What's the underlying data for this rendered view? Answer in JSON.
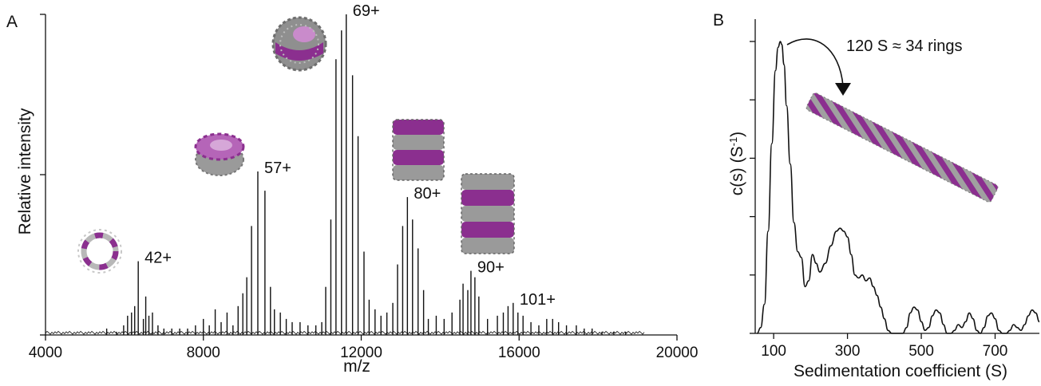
{
  "chart_data": [
    {
      "panel": "A",
      "type": "line",
      "title": "",
      "xlabel": "m/z",
      "ylabel": "Relative intensity",
      "xlim": [
        4000,
        20000
      ],
      "ylim": [
        0,
        1
      ],
      "x_ticks": [
        4000,
        8000,
        12000,
        16000,
        20000
      ],
      "y_ticks_unlabeled": [
        0,
        0.5,
        1
      ],
      "grid": false,
      "series": [
        {
          "peaks": [
            {
              "x": 5550,
              "y": 0.02
            },
            {
              "x": 5800,
              "y": 0.01
            },
            {
              "x": 5980,
              "y": 0.03
            },
            {
              "x": 6080,
              "y": 0.06
            },
            {
              "x": 6180,
              "y": 0.07
            },
            {
              "x": 6260,
              "y": 0.09
            },
            {
              "x": 6350,
              "y": 0.23
            },
            {
              "x": 6480,
              "y": 0.05
            },
            {
              "x": 6540,
              "y": 0.12
            },
            {
              "x": 6620,
              "y": 0.06
            },
            {
              "x": 6710,
              "y": 0.07
            },
            {
              "x": 6850,
              "y": 0.03
            },
            {
              "x": 7000,
              "y": 0.02
            },
            {
              "x": 7200,
              "y": 0.02
            },
            {
              "x": 7400,
              "y": 0.02
            },
            {
              "x": 7600,
              "y": 0.02
            },
            {
              "x": 7800,
              "y": 0.03
            },
            {
              "x": 8000,
              "y": 0.05
            },
            {
              "x": 8150,
              "y": 0.03
            },
            {
              "x": 8300,
              "y": 0.08
            },
            {
              "x": 8450,
              "y": 0.04
            },
            {
              "x": 8600,
              "y": 0.07
            },
            {
              "x": 8750,
              "y": 0.03
            },
            {
              "x": 8880,
              "y": 0.09
            },
            {
              "x": 9000,
              "y": 0.13
            },
            {
              "x": 9100,
              "y": 0.18
            },
            {
              "x": 9220,
              "y": 0.34
            },
            {
              "x": 9380,
              "y": 0.51
            },
            {
              "x": 9560,
              "y": 0.45
            },
            {
              "x": 9700,
              "y": 0.15
            },
            {
              "x": 9800,
              "y": 0.08
            },
            {
              "x": 9950,
              "y": 0.07
            },
            {
              "x": 10100,
              "y": 0.05
            },
            {
              "x": 10250,
              "y": 0.04
            },
            {
              "x": 10450,
              "y": 0.04
            },
            {
              "x": 10650,
              "y": 0.03
            },
            {
              "x": 10850,
              "y": 0.03
            },
            {
              "x": 11000,
              "y": 0.04
            },
            {
              "x": 11100,
              "y": 0.15
            },
            {
              "x": 11230,
              "y": 0.36
            },
            {
              "x": 11360,
              "y": 0.86
            },
            {
              "x": 11500,
              "y": 0.95
            },
            {
              "x": 11620,
              "y": 1.0
            },
            {
              "x": 11780,
              "y": 0.81
            },
            {
              "x": 11920,
              "y": 0.62
            },
            {
              "x": 12070,
              "y": 0.26
            },
            {
              "x": 12200,
              "y": 0.11
            },
            {
              "x": 12350,
              "y": 0.08
            },
            {
              "x": 12500,
              "y": 0.06
            },
            {
              "x": 12650,
              "y": 0.07
            },
            {
              "x": 12800,
              "y": 0.1
            },
            {
              "x": 12920,
              "y": 0.22
            },
            {
              "x": 13050,
              "y": 0.34
            },
            {
              "x": 13170,
              "y": 0.43
            },
            {
              "x": 13300,
              "y": 0.36
            },
            {
              "x": 13440,
              "y": 0.27
            },
            {
              "x": 13580,
              "y": 0.14
            },
            {
              "x": 13700,
              "y": 0.05
            },
            {
              "x": 13900,
              "y": 0.06
            },
            {
              "x": 14100,
              "y": 0.05
            },
            {
              "x": 14300,
              "y": 0.07
            },
            {
              "x": 14500,
              "y": 0.11
            },
            {
              "x": 14580,
              "y": 0.16
            },
            {
              "x": 14700,
              "y": 0.14
            },
            {
              "x": 14780,
              "y": 0.2
            },
            {
              "x": 14880,
              "y": 0.18
            },
            {
              "x": 14980,
              "y": 0.12
            },
            {
              "x": 15200,
              "y": 0.05
            },
            {
              "x": 15450,
              "y": 0.06
            },
            {
              "x": 15600,
              "y": 0.07
            },
            {
              "x": 15720,
              "y": 0.09
            },
            {
              "x": 15850,
              "y": 0.1
            },
            {
              "x": 15970,
              "y": 0.07
            },
            {
              "x": 16100,
              "y": 0.06
            },
            {
              "x": 16300,
              "y": 0.04
            },
            {
              "x": 16500,
              "y": 0.03
            },
            {
              "x": 16700,
              "y": 0.05
            },
            {
              "x": 16850,
              "y": 0.05
            },
            {
              "x": 17000,
              "y": 0.04
            },
            {
              "x": 17200,
              "y": 0.03
            },
            {
              "x": 17450,
              "y": 0.03
            },
            {
              "x": 17650,
              "y": 0.02
            },
            {
              "x": 17850,
              "y": 0.02
            },
            {
              "x": 18100,
              "y": 0.01
            },
            {
              "x": 18400,
              "y": 0.01
            },
            {
              "x": 18700,
              "y": 0.01
            }
          ]
        }
      ],
      "annotations": [
        {
          "text": "42+",
          "x": 6350,
          "y": 0.23
        },
        {
          "text": "57+",
          "x": 9380,
          "y": 0.51
        },
        {
          "text": "69+",
          "x": 11620,
          "y": 1.0
        },
        {
          "text": "80+",
          "x": 13170,
          "y": 0.43
        },
        {
          "text": "90+",
          "x": 14780,
          "y": 0.2
        },
        {
          "text": "101+",
          "x": 15850,
          "y": 0.1
        }
      ]
    },
    {
      "panel": "B",
      "type": "line",
      "title": "",
      "xlabel": "Sedimentation coefficient (S)",
      "ylabel": "c(s) (S",
      "ylabel_sup": "-1",
      "ylabel_close": ")",
      "xlim": [
        50,
        820
      ],
      "ylim": [
        0,
        1
      ],
      "x_ticks": [
        100,
        300,
        500,
        700
      ],
      "y_ticks_unlabeled": [
        0,
        0.2,
        0.4,
        0.6,
        0.8,
        1.0
      ],
      "grid": false,
      "series": [
        {
          "x": [
            55,
            65,
            75,
            85,
            95,
            105,
            112,
            118,
            122,
            128,
            135,
            145,
            155,
            165,
            175,
            185,
            195,
            205,
            215,
            225,
            240,
            255,
            270,
            280,
            290,
            300,
            310,
            320,
            330,
            340,
            350,
            360,
            370,
            380,
            390,
            400,
            410,
            420,
            430,
            440,
            450,
            460,
            470,
            480,
            490,
            500,
            510,
            520,
            530,
            540,
            550,
            560,
            570,
            580,
            590,
            600,
            610,
            620,
            630,
            640,
            650,
            660,
            670,
            680,
            690,
            700,
            710,
            720,
            730,
            740,
            750,
            760,
            770,
            780,
            790,
            800,
            810,
            820
          ],
          "y": [
            0.0,
            0.02,
            0.1,
            0.35,
            0.65,
            0.9,
            0.98,
            1.0,
            0.99,
            0.92,
            0.78,
            0.58,
            0.38,
            0.28,
            0.26,
            0.16,
            0.18,
            0.27,
            0.24,
            0.21,
            0.24,
            0.3,
            0.35,
            0.36,
            0.35,
            0.33,
            0.27,
            0.2,
            0.19,
            0.2,
            0.18,
            0.19,
            0.16,
            0.13,
            0.09,
            0.05,
            0.01,
            0.0,
            0.0,
            0.0,
            0.0,
            0.02,
            0.07,
            0.09,
            0.08,
            0.04,
            0.01,
            0.02,
            0.06,
            0.08,
            0.07,
            0.03,
            0.0,
            0.0,
            0.01,
            0.03,
            0.02,
            0.04,
            0.07,
            0.05,
            0.01,
            0.0,
            0.02,
            0.06,
            0.07,
            0.05,
            0.01,
            0.0,
            0.0,
            0.01,
            0.03,
            0.02,
            0.01,
            0.03,
            0.06,
            0.08,
            0.07,
            0.04
          ]
        }
      ],
      "annotations": [
        {
          "text": "120 S ≈ 34 rings",
          "x": 120,
          "y": 1.0
        }
      ]
    }
  ],
  "structure_icons": [
    {
      "name": "single-ring-icon",
      "colors": [
        "#8b2f8f",
        "#9a9a9a"
      ]
    },
    {
      "name": "double-ring-icon",
      "colors": [
        "#8b2f8f",
        "#9a9a9a"
      ]
    },
    {
      "name": "ring-cage-icon",
      "colors": [
        "#8b2f8f",
        "#9a9a9a"
      ]
    },
    {
      "name": "stack-three-rings-icon",
      "colors": [
        "#8b2f8f",
        "#9a9a9a"
      ]
    },
    {
      "name": "stack-four-rings-icon",
      "colors": [
        "#8b2f8f",
        "#9a9a9a"
      ]
    },
    {
      "name": "nanotube-rod-icon",
      "colors": [
        "#8b2f8f",
        "#9a9a9a"
      ]
    }
  ],
  "colors": {
    "line": "#111111",
    "purple": "#8b2f8f",
    "grey": "#9a9a9a"
  }
}
